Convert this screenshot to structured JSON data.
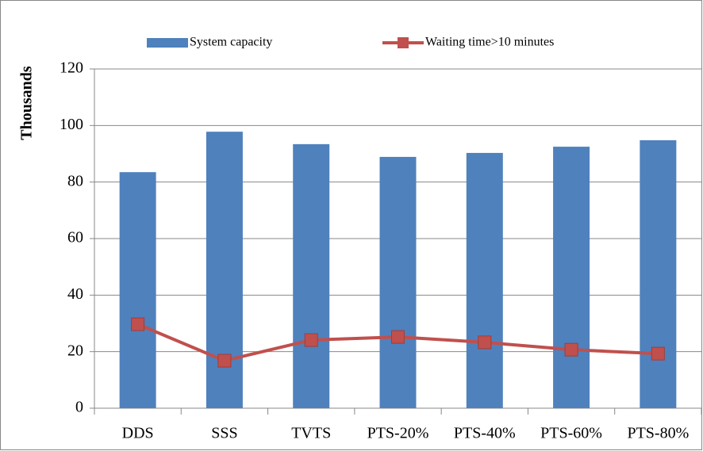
{
  "chart_data": {
    "type": "bar",
    "categories": [
      "DDS",
      "SSS",
      "TVTS",
      "PTS-20%",
      "PTS-40%",
      "PTS-60%",
      "PTS-80%"
    ],
    "series": [
      {
        "name": "System capacity",
        "type": "bar",
        "color": "#4f81bd",
        "values": [
          83.5,
          97.8,
          93.4,
          88.9,
          90.3,
          92.5,
          94.8
        ]
      },
      {
        "name": "Waiting time>10 minutes",
        "type": "line",
        "color": "#c0504d",
        "values": [
          29.7,
          16.8,
          24.1,
          25.2,
          23.3,
          20.7,
          19.3
        ]
      }
    ],
    "y_label": "Thousands",
    "ylim": [
      0,
      120
    ],
    "yticks": [
      0,
      20,
      40,
      60,
      80,
      100,
      120
    ],
    "grid": true,
    "legend": "top"
  }
}
